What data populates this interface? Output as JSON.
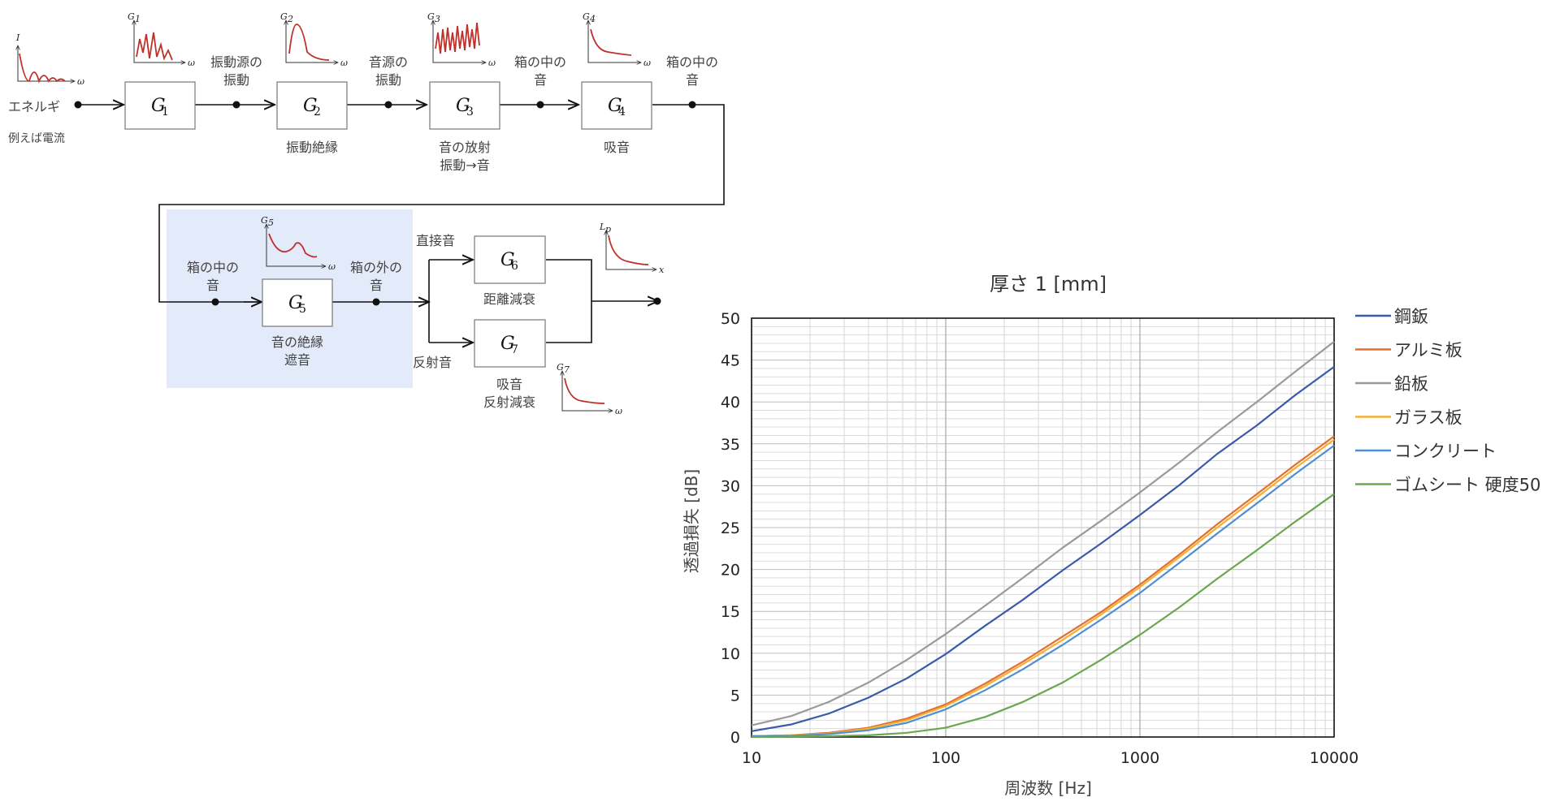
{
  "diagram": {
    "input": {
      "label": "エネルギ",
      "note": "例えば電流",
      "graph_y": "I",
      "graph_x": "ω"
    },
    "blocks": [
      {
        "id": "G1",
        "letter": "G",
        "sub": "1",
        "below": [],
        "graph_y": "G",
        "graph_y_sub": "1",
        "graph_x": "ω"
      },
      {
        "id": "G2",
        "letter": "G",
        "sub": "2",
        "below": [
          "振動絶縁"
        ],
        "graph_y": "G",
        "graph_y_sub": "2",
        "graph_x": "ω"
      },
      {
        "id": "G3",
        "letter": "G",
        "sub": "3",
        "below": [
          "音の放射",
          "振動→音"
        ],
        "graph_y": "G",
        "graph_y_sub": "3",
        "graph_x": "ω"
      },
      {
        "id": "G4",
        "letter": "G",
        "sub": "4",
        "below": [
          "吸音"
        ],
        "graph_y": "G",
        "graph_y_sub": "4",
        "graph_x": "ω"
      },
      {
        "id": "G5",
        "letter": "G",
        "sub": "5",
        "below": [
          "音の絶縁",
          "遮音"
        ],
        "graph_y": "G",
        "graph_y_sub": "5",
        "graph_x": "ω"
      },
      {
        "id": "G6",
        "letter": "G",
        "sub": "6",
        "below": [
          "距離減衰"
        ]
      },
      {
        "id": "G7",
        "letter": "G",
        "sub": "7",
        "below": [
          "吸音",
          "反射減衰"
        ],
        "graph_y": "G",
        "graph_y_sub": "7",
        "graph_x": "ω"
      }
    ],
    "signals": {
      "s1": [
        "振動源の",
        "振動"
      ],
      "s2": [
        "音源の",
        "振動"
      ],
      "s3": [
        "箱の中の",
        "音"
      ],
      "s4": [
        "箱の中の",
        "音"
      ],
      "s5": [
        "箱の中の",
        "音"
      ],
      "s6": [
        "箱の外の",
        "音"
      ],
      "direct": "直接音",
      "reflect": "反射音"
    },
    "output": {
      "graph_y": "L",
      "graph_y_sub": "p",
      "graph_x": "x"
    },
    "colors": {
      "highlight": "#e3ebfa",
      "graph": "#c0302a"
    }
  },
  "chart_data": {
    "type": "line",
    "title": "厚さ 1 [mm]",
    "xlabel": "周波数 [Hz]",
    "ylabel": "透過損失 [dB]",
    "xscale": "log",
    "xlim": [
      10,
      10000
    ],
    "ylim": [
      0,
      50
    ],
    "xticks": [
      "10",
      "100",
      "1000",
      "10000"
    ],
    "yticks": [
      "0",
      "5",
      "10",
      "15",
      "20",
      "25",
      "30",
      "35",
      "40",
      "45",
      "50"
    ],
    "grid": true,
    "legend_position": "right",
    "x": [
      10,
      16,
      25,
      40,
      63,
      100,
      160,
      250,
      400,
      630,
      1000,
      1600,
      2500,
      4000,
      6300,
      10000
    ],
    "series": [
      {
        "name": "鋼鈑",
        "color": "#3a5ba8",
        "values": [
          0.7,
          1.5,
          2.8,
          4.7,
          7.0,
          9.9,
          13.3,
          16.4,
          19.9,
          23.1,
          26.5,
          30.1,
          33.8,
          37.2,
          40.8,
          44.2
        ]
      },
      {
        "name": "アルミ板",
        "color": "#e4702d",
        "values": [
          0.1,
          0.2,
          0.5,
          1.1,
          2.2,
          3.9,
          6.4,
          9.0,
          12.0,
          14.9,
          18.2,
          21.8,
          25.4,
          29.0,
          32.5,
          35.9
        ]
      },
      {
        "name": "鉛板",
        "color": "#9a9a9a",
        "values": [
          1.4,
          2.5,
          4.2,
          6.5,
          9.2,
          12.3,
          15.7,
          19.0,
          22.6,
          25.8,
          29.2,
          32.8,
          36.4,
          40.0,
          43.6,
          47.2
        ]
      },
      {
        "name": "ガラス板",
        "color": "#f2b134",
        "values": [
          0.1,
          0.2,
          0.4,
          1.0,
          2.0,
          3.7,
          6.1,
          8.7,
          11.6,
          14.6,
          17.9,
          21.5,
          25.0,
          28.6,
          32.1,
          35.5
        ]
      },
      {
        "name": "コンクリート",
        "color": "#4f8fd0",
        "values": [
          0.1,
          0.15,
          0.35,
          0.8,
          1.7,
          3.3,
          5.6,
          8.1,
          11.0,
          14.0,
          17.2,
          20.8,
          24.3,
          27.9,
          31.4,
          34.8
        ]
      },
      {
        "name": "ゴムシート 硬度50",
        "color": "#6aa84f",
        "values": [
          0.0,
          0.05,
          0.1,
          0.2,
          0.5,
          1.1,
          2.4,
          4.2,
          6.5,
          9.2,
          12.2,
          15.5,
          18.9,
          22.3,
          25.7,
          29.0
        ]
      }
    ]
  }
}
